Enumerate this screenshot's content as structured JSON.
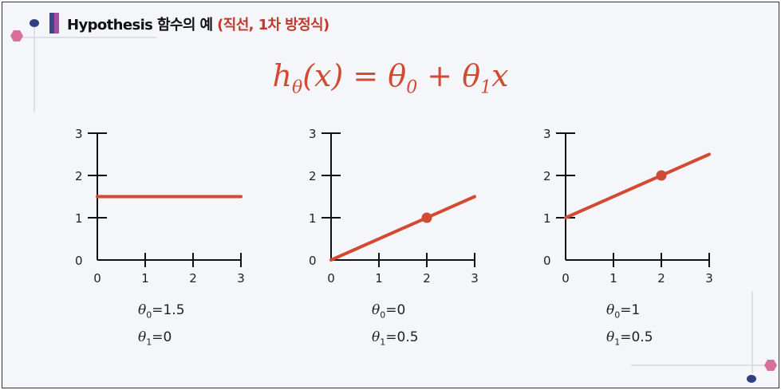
{
  "header": {
    "title": "Hypothesis 함수의 예",
    "subtitle": "(직선, 1차 방정식)"
  },
  "formula": {
    "lhs": "h",
    "lhs_sub": "θ",
    "arg": "(x) = ",
    "t0": "θ",
    "t0_sub": "0",
    "plus": " + ",
    "t1": "θ",
    "t1_sub": "1",
    "x": "x"
  },
  "colors": {
    "line": "#d14a32",
    "accent_pink": "#d8709b",
    "accent_navy": "#2f3f82",
    "axis": "#111111"
  },
  "chart_data": [
    {
      "type": "line",
      "xlim": [
        0,
        3
      ],
      "ylim": [
        0,
        3
      ],
      "xticks": [
        "0",
        "1",
        "2",
        "3"
      ],
      "yticks": [
        "0",
        "1",
        "2",
        "3"
      ],
      "theta0": 1.5,
      "theta1": 0,
      "x": [
        0,
        3
      ],
      "y": [
        1.5,
        1.5
      ],
      "points": [],
      "caption": {
        "t0_label": "θ",
        "t0_sub": "0",
        "t0_val": "=1.5",
        "t1_label": "θ",
        "t1_sub": "1",
        "t1_val": "=0"
      }
    },
    {
      "type": "line",
      "xlim": [
        0,
        3
      ],
      "ylim": [
        0,
        3
      ],
      "xticks": [
        "0",
        "1",
        "2",
        "3"
      ],
      "yticks": [
        "0",
        "1",
        "2",
        "3"
      ],
      "theta0": 0,
      "theta1": 0.5,
      "x": [
        0,
        3
      ],
      "y": [
        0,
        1.5
      ],
      "points": [
        [
          2,
          1
        ]
      ],
      "caption": {
        "t0_label": "θ",
        "t0_sub": "0",
        "t0_val": "=0",
        "t1_label": "θ",
        "t1_sub": "1",
        "t1_val": "=0.5"
      }
    },
    {
      "type": "line",
      "xlim": [
        0,
        3
      ],
      "ylim": [
        0,
        3
      ],
      "xticks": [
        "0",
        "1",
        "2",
        "3"
      ],
      "yticks": [
        "0",
        "1",
        "2",
        "3"
      ],
      "theta0": 1,
      "theta1": 0.5,
      "x": [
        0,
        3
      ],
      "y": [
        1,
        2.5
      ],
      "points": [
        [
          2,
          2
        ]
      ],
      "caption": {
        "t0_label": "θ",
        "t0_sub": "0",
        "t0_val": "=1",
        "t1_label": "θ",
        "t1_sub": "1",
        "t1_val": "=0.5"
      }
    }
  ]
}
